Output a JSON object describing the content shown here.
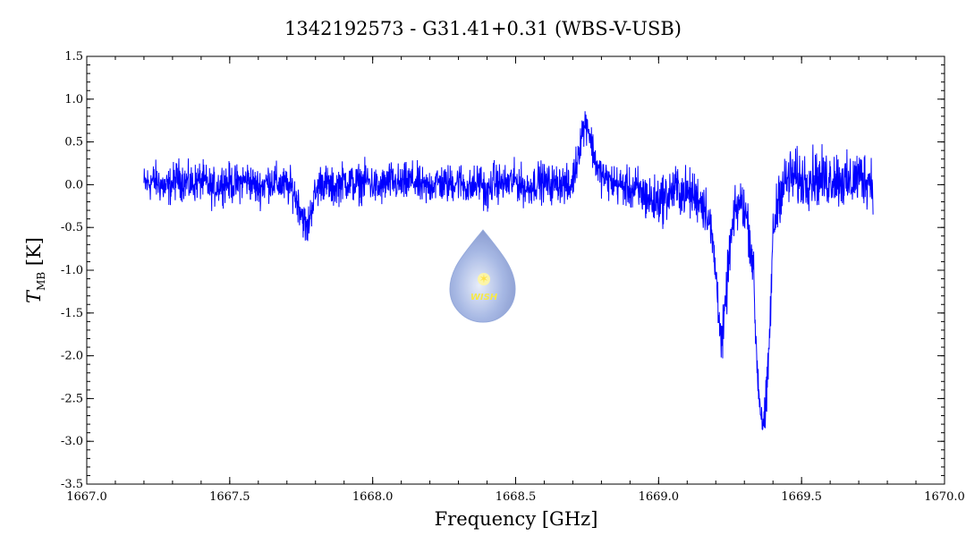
{
  "chart_data": {
    "type": "line",
    "title": "1342192573 - G31.41+0.31 (WBS-V-USB)",
    "xlabel": "Frequency [GHz]",
    "ylabel_main": "T",
    "ylabel_sub": "MB",
    "ylabel_unit": "[K]",
    "xlim": [
      1667.0,
      1670.0
    ],
    "ylim": [
      -3.5,
      1.5
    ],
    "x_ticks": [
      {
        "value": 1667.0,
        "label": "1667.0"
      },
      {
        "value": 1667.5,
        "label": "1667.5"
      },
      {
        "value": 1668.0,
        "label": "1668.0"
      },
      {
        "value": 1668.5,
        "label": "1668.5"
      },
      {
        "value": 1669.0,
        "label": "1669.0"
      },
      {
        "value": 1669.5,
        "label": "1669.5"
      },
      {
        "value": 1670.0,
        "label": "1670.0"
      }
    ],
    "y_ticks": [
      {
        "value": 1.5,
        "label": "1.5"
      },
      {
        "value": 1.0,
        "label": "1.0"
      },
      {
        "value": 0.5,
        "label": "0.5"
      },
      {
        "value": 0.0,
        "label": "0.0"
      },
      {
        "value": -0.5,
        "label": "-0.5"
      },
      {
        "value": -1.0,
        "label": "-1.0"
      },
      {
        "value": -1.5,
        "label": "-1.5"
      },
      {
        "value": -2.0,
        "label": "-2.0"
      },
      {
        "value": -2.5,
        "label": "-2.5"
      },
      {
        "value": -3.0,
        "label": "-3.0"
      },
      {
        "value": -3.5,
        "label": "-3.5"
      }
    ],
    "grid": false,
    "series": [
      {
        "color": "#0000ff",
        "points": [
          [
            1667.2,
            0.0
          ],
          [
            1667.24,
            0.05
          ],
          [
            1667.28,
            -0.05
          ],
          [
            1667.32,
            0.08
          ],
          [
            1667.36,
            0.0
          ],
          [
            1667.4,
            0.05
          ],
          [
            1667.44,
            -0.05
          ],
          [
            1667.48,
            0.04
          ],
          [
            1667.52,
            0.0
          ],
          [
            1667.56,
            0.06
          ],
          [
            1667.6,
            -0.04
          ],
          [
            1667.64,
            0.05
          ],
          [
            1667.68,
            0.0
          ],
          [
            1667.72,
            -0.05
          ],
          [
            1667.75,
            -0.3
          ],
          [
            1667.77,
            -0.55
          ],
          [
            1667.79,
            -0.2
          ],
          [
            1667.82,
            0.05
          ],
          [
            1667.86,
            -0.05
          ],
          [
            1667.9,
            0.05
          ],
          [
            1667.94,
            0.0
          ],
          [
            1667.98,
            0.05
          ],
          [
            1668.02,
            -0.05
          ],
          [
            1668.06,
            0.04
          ],
          [
            1668.1,
            0.0
          ],
          [
            1668.14,
            0.05
          ],
          [
            1668.18,
            -0.05
          ],
          [
            1668.22,
            0.03
          ],
          [
            1668.26,
            0.0
          ],
          [
            1668.3,
            0.05
          ],
          [
            1668.34,
            -0.05
          ],
          [
            1668.38,
            0.05
          ],
          [
            1668.4,
            -0.15
          ],
          [
            1668.42,
            0.05
          ],
          [
            1668.46,
            0.0
          ],
          [
            1668.5,
            0.05
          ],
          [
            1668.54,
            -0.05
          ],
          [
            1668.58,
            0.05
          ],
          [
            1668.62,
            0.0
          ],
          [
            1668.66,
            0.03
          ],
          [
            1668.69,
            -0.05
          ],
          [
            1668.71,
            0.2
          ],
          [
            1668.73,
            0.6
          ],
          [
            1668.75,
            0.75
          ],
          [
            1668.77,
            0.4
          ],
          [
            1668.79,
            0.15
          ],
          [
            1668.82,
            0.05
          ],
          [
            1668.86,
            0.0
          ],
          [
            1668.9,
            -0.05
          ],
          [
            1668.94,
            -0.1
          ],
          [
            1668.98,
            -0.2
          ],
          [
            1669.02,
            -0.15
          ],
          [
            1669.06,
            -0.05
          ],
          [
            1669.1,
            -0.1
          ],
          [
            1669.14,
            -0.15
          ],
          [
            1669.17,
            -0.3
          ],
          [
            1669.19,
            -0.7
          ],
          [
            1669.21,
            -1.4
          ],
          [
            1669.22,
            -1.9
          ],
          [
            1669.23,
            -1.6
          ],
          [
            1669.25,
            -0.7
          ],
          [
            1669.27,
            -0.3
          ],
          [
            1669.29,
            -0.2
          ],
          [
            1669.31,
            -0.4
          ],
          [
            1669.33,
            -0.9
          ],
          [
            1669.34,
            -1.8
          ],
          [
            1669.35,
            -2.4
          ],
          [
            1669.36,
            -2.7
          ],
          [
            1669.37,
            -2.8
          ],
          [
            1669.38,
            -2.4
          ],
          [
            1669.39,
            -1.6
          ],
          [
            1669.4,
            -0.6
          ],
          [
            1669.42,
            -0.1
          ],
          [
            1669.46,
            0.1
          ],
          [
            1669.5,
            0.05
          ],
          [
            1669.54,
            0.1
          ],
          [
            1669.58,
            0.05
          ],
          [
            1669.62,
            0.1
          ],
          [
            1669.66,
            0.0
          ],
          [
            1669.7,
            0.1
          ],
          [
            1669.75,
            0.05
          ]
        ]
      }
    ],
    "logo": "WISH"
  }
}
